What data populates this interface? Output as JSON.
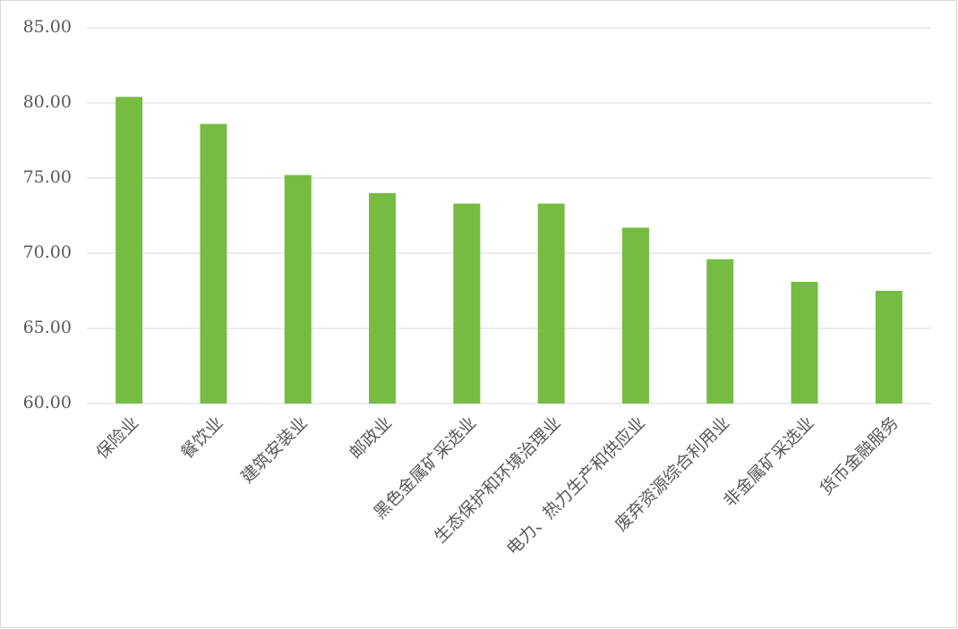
{
  "chart_data": {
    "type": "bar",
    "categories": [
      "保险业",
      "餐饮业",
      "建筑安装业",
      "邮政业",
      "黑色金属矿采选业",
      "生态保护和环境治理业",
      "电力、热力生产和供应业",
      "废弃资源综合利用业",
      "非金属矿采选业",
      "货币金融服务"
    ],
    "values": [
      80.4,
      78.6,
      75.2,
      74.0,
      73.3,
      73.3,
      71.7,
      69.6,
      68.1,
      67.5
    ],
    "color": "#76bc43",
    "ylim": [
      60,
      85
    ],
    "yticks": [
      {
        "value": 60,
        "label": "60.00"
      },
      {
        "value": 65,
        "label": "65.00"
      },
      {
        "value": 70,
        "label": "70.00"
      },
      {
        "value": 75,
        "label": "75.00"
      },
      {
        "value": 80,
        "label": "80.00"
      },
      {
        "value": 85,
        "label": "85.00"
      }
    ],
    "grid": true
  }
}
